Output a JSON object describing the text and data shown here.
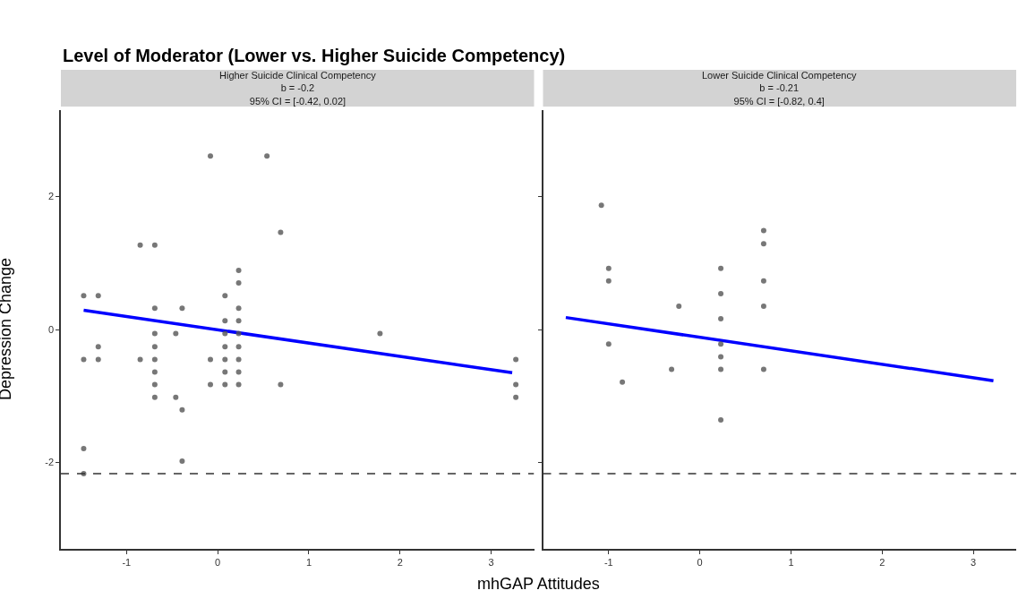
{
  "chart_data": [
    {
      "type": "scatter",
      "title": "Level of Moderator (Lower vs. Higher Suicide Competency)",
      "subtitle": "Higher Suicide Clinical Competency\nb = -0.2\n95% CI = [-0.42, 0.02]",
      "xlabel": "mhGAP Attitudes",
      "ylabel": "Depression Change",
      "xlim": [
        -1.72,
        3.47
      ],
      "xticks": [
        -1,
        0,
        1,
        2,
        3
      ],
      "ylim": [
        -3.3,
        3.3
      ],
      "yticks": [
        -2,
        0,
        2
      ],
      "series": [
        {
          "color": "#555555",
          "x": [
            -1.47,
            -1.47,
            -1.47,
            -1.47,
            -1.31,
            -1.31,
            -1.31,
            -0.85,
            -0.85,
            -0.69,
            -0.69,
            -0.69,
            -0.69,
            -0.69,
            -0.69,
            -0.69,
            -0.69,
            -0.46,
            -0.46,
            -0.39,
            -0.39,
            -0.39,
            -0.08,
            -0.08,
            -0.08,
            0.08,
            0.08,
            0.08,
            0.08,
            0.08,
            0.08,
            0.08,
            0.23,
            0.23,
            0.23,
            0.23,
            0.23,
            0.23,
            0.23,
            0.23,
            0.23,
            0.54,
            0.69,
            0.69,
            1.78,
            3.27,
            3.27,
            3.27
          ],
          "values": [
            0.51,
            -0.45,
            -1.79,
            -2.17,
            0.51,
            -0.26,
            -0.45,
            1.27,
            -0.45,
            1.27,
            0.32,
            -0.06,
            -0.26,
            -0.45,
            -0.64,
            -0.83,
            -1.02,
            -0.06,
            -1.02,
            0.32,
            -1.21,
            -1.98,
            2.61,
            -0.45,
            -0.83,
            0.51,
            0.13,
            -0.06,
            -0.26,
            -0.45,
            -0.64,
            -0.83,
            0.89,
            0.7,
            0.32,
            0.13,
            -0.06,
            -0.26,
            -0.45,
            -0.64,
            -0.83,
            2.61,
            1.46,
            -0.83,
            -0.06,
            -0.45,
            -0.83,
            -1.02
          ]
        },
        {
          "type": "line",
          "color": "#0000ff",
          "x": [
            -1.47,
            3.23
          ],
          "values": [
            0.29,
            -0.65
          ]
        }
      ],
      "ref_lines": [
        {
          "axis": "y",
          "value": -2.17,
          "color": "#333333",
          "line_style": "dashed"
        }
      ]
    },
    {
      "type": "scatter",
      "subtitle": "Lower Suicide Clinical Competency\nb = -0.21\n95% CI = [-0.82, 0.4]",
      "xlim": [
        -1.72,
        3.47
      ],
      "xticks": [
        -1,
        0,
        1,
        2,
        3
      ],
      "ylim": [
        -3.3,
        3.3
      ],
      "yticks": [
        -2,
        0,
        2
      ],
      "tick_labels": "x",
      "series": [
        {
          "color": "#555555",
          "x": [
            -1.08,
            -1.0,
            -1.0,
            -1.0,
            -0.85,
            -0.31,
            -0.23,
            0.23,
            0.23,
            0.23,
            0.23,
            0.23,
            0.23,
            0.23,
            0.7,
            0.7,
            0.7,
            0.7,
            0.7
          ],
          "values": [
            1.87,
            0.92,
            0.73,
            -0.22,
            -0.79,
            -0.6,
            0.35,
            0.92,
            0.54,
            0.16,
            -0.22,
            -0.41,
            -0.6,
            -1.36,
            1.49,
            1.29,
            0.73,
            0.35,
            -0.6
          ]
        },
        {
          "type": "line",
          "color": "#0000ff",
          "x": [
            -1.47,
            3.22
          ],
          "values": [
            0.18,
            -0.77
          ]
        }
      ],
      "ref_lines": [
        {
          "axis": "y",
          "value": -2.17,
          "color": "#333333",
          "line_style": "dashed"
        }
      ]
    }
  ]
}
